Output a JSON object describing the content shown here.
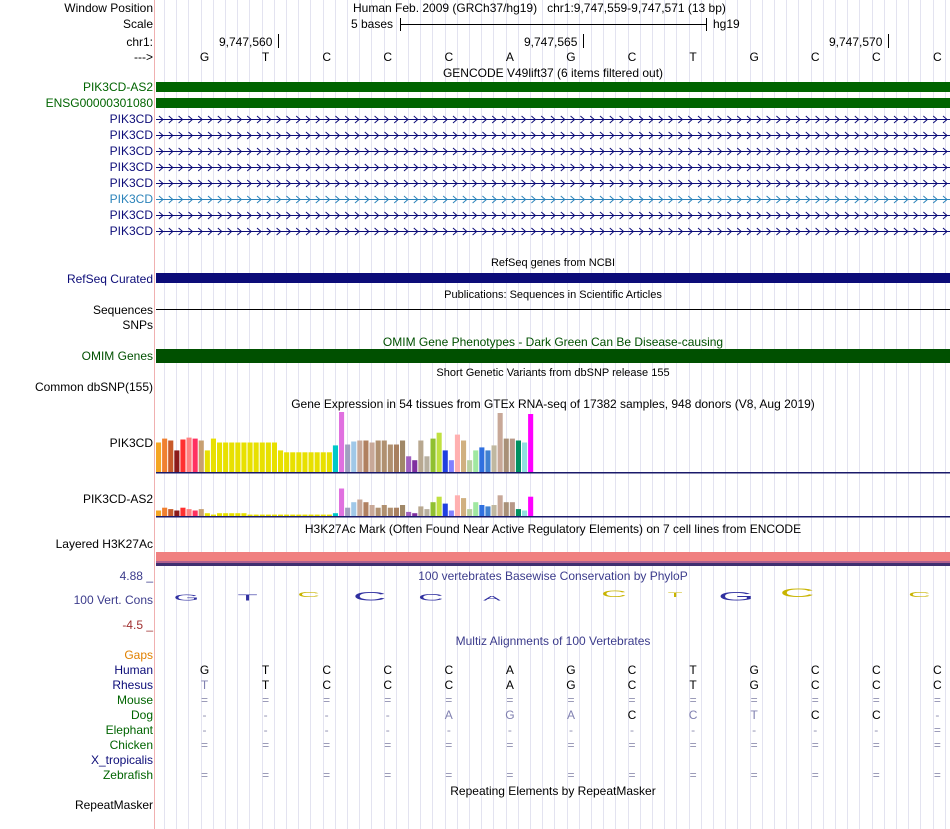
{
  "labels": {
    "window_position": "Window Position",
    "scale": "Scale",
    "chr": "chr1:",
    "arrow": "--->",
    "pik3cd_as2": "PIK3CD-AS2",
    "ensg": "ENSG00000301080",
    "pik3cd": "PIK3CD",
    "refseq": "RefSeq Curated",
    "sequences": "Sequences",
    "snps": "SNPs",
    "omim": "OMIM Genes",
    "common_dbsnp": "Common dbSNP(155)",
    "gtex_pik3cd": "PIK3CD",
    "gtex_pik3cd_as2": "PIK3CD-AS2",
    "layered": "Layered H3K27Ac",
    "cons": "100 Vert. Cons",
    "cons_max": "4.88 _",
    "cons_min": "-4.5 _",
    "repeatmasker": "RepeatMasker"
  },
  "header": {
    "position": "Human Feb. 2009 (GRCh37/hg19)   chr1:9,747,559-9,747,571 (13 bp)",
    "scale_text": "5 bases",
    "assembly": "hg19",
    "ticks": [
      "9,747,560",
      "9,747,565",
      "9,747,570"
    ]
  },
  "bases": [
    "G",
    "T",
    "C",
    "C",
    "C",
    "A",
    "G",
    "C",
    "T",
    "G",
    "C",
    "C",
    "C"
  ],
  "track_titles": {
    "gencode": "GENCODE V49lift37 (6 items filtered out)",
    "refseq": "RefSeq genes from NCBI",
    "publications": "Publications: Sequences in Scientific Articles",
    "omim": "OMIM Gene Phenotypes - Dark Green Can Be Disease-causing",
    "dbsnp": "Short Genetic Variants from dbSNP release 155",
    "gtex": "Gene Expression in 54 tissues from GTEx RNA-seq of 17382 samples, 948 donors (V8, Aug 2019)",
    "h3k27ac": "H3K27Ac Mark (Often Found Near Active Regulatory Elements) on 7 cell lines from ENCODE",
    "phylop": "100 vertebrates Basewise Conservation by PhyloP",
    "multiz": "Multiz Alignments of 100 Vertebrates",
    "repeat": "Repeating Elements by RepeatMasker"
  },
  "gencode_transcripts": [
    "PIK3CD",
    "PIK3CD",
    "PIK3CD",
    "PIK3CD",
    "PIK3CD",
    "PIK3CD",
    "PIK3CD",
    "PIK3CD"
  ],
  "multiz": {
    "gaps_label": "Gaps",
    "species": [
      {
        "name": "Human",
        "bases": [
          "G",
          "T",
          "C",
          "C",
          "C",
          "A",
          "G",
          "C",
          "T",
          "G",
          "C",
          "C",
          "C"
        ]
      },
      {
        "name": "Rhesus",
        "bases": [
          "T",
          "T",
          "C",
          "C",
          "C",
          "A",
          "G",
          "C",
          "T",
          "G",
          "C",
          "C",
          "C"
        ]
      },
      {
        "name": "Mouse",
        "bases": [
          "=",
          "=",
          "=",
          "=",
          "=",
          "=",
          "=",
          "=",
          "=",
          "=",
          "=",
          "=",
          "="
        ]
      },
      {
        "name": "Dog",
        "bases": [
          "-",
          "-",
          "-",
          "-",
          "A",
          "G",
          "A",
          "C",
          "C",
          "T",
          "C",
          "C",
          "-"
        ]
      },
      {
        "name": "Elephant",
        "bases": [
          "-",
          "-",
          "-",
          "-",
          "-",
          "-",
          "-",
          "-",
          "-",
          "-",
          "-",
          "-",
          "="
        ]
      },
      {
        "name": "Chicken",
        "bases": [
          "=",
          "=",
          "=",
          "=",
          "=",
          "=",
          "=",
          "=",
          "=",
          "=",
          "=",
          "=",
          "="
        ]
      },
      {
        "name": "X_tropicalis",
        "bases": [
          "",
          "",
          "",
          "",
          "",
          "",
          "",
          "",
          "",
          "",
          "",
          "",
          ""
        ]
      },
      {
        "name": "Zebrafish",
        "bases": [
          "=",
          "=",
          "=",
          "=",
          "=",
          "=",
          "=",
          "=",
          "=",
          "=",
          "=",
          "=",
          "="
        ]
      }
    ]
  },
  "gtex_pik3cd_values": [
    30,
    34,
    32,
    22,
    33,
    35,
    34,
    32,
    22,
    34,
    30,
    30,
    30,
    30,
    30,
    30,
    30,
    30,
    30,
    30,
    22,
    20,
    20,
    20,
    20,
    20,
    20,
    20,
    20,
    27,
    61,
    28,
    31,
    32,
    32,
    30,
    32,
    32,
    28,
    28,
    32,
    16,
    12,
    32,
    16,
    34,
    40,
    22,
    12,
    38,
    32,
    12,
    22,
    25,
    22,
    27,
    60,
    34,
    34,
    32,
    30,
    59
  ],
  "gtex_pik3cd_colors": [
    "#f5a623",
    "#f08030",
    "#c85a2a",
    "#8b1a1a",
    "#ff3030",
    "#ff8080",
    "#ff3060",
    "#c8a070",
    "#e8e000",
    "#e8e000",
    "#e8e000",
    "#e8e000",
    "#e8e000",
    "#e8e000",
    "#e8e000",
    "#e8e000",
    "#e8e000",
    "#e8e000",
    "#e8e000",
    "#e8e000",
    "#e8e000",
    "#e8e000",
    "#e8e000",
    "#e8e000",
    "#e8e000",
    "#e8e000",
    "#e8e000",
    "#e8e000",
    "#e8e000",
    "#00c8c8",
    "#e070e0",
    "#a0a0c0",
    "#a0c8e8",
    "#c8a898",
    "#b08060",
    "#c8a898",
    "#b09070",
    "#b09070",
    "#b09070",
    "#a88060",
    "#a08868",
    "#a060c0",
    "#8030a0",
    "#b8a890",
    "#b8b0a0",
    "#90c030",
    "#c0e040",
    "#2040e0",
    "#8080ff",
    "#ffb0b0",
    "#d0b080",
    "#b8d0a0",
    "#a0e8a0",
    "#3070e0",
    "#4080d0",
    "#c0b8a0",
    "#c8a898",
    "#a89078",
    "#b89888",
    "#009060",
    "#90e0e0",
    "#ff00ff"
  ],
  "gtex_as2_values": [
    8,
    12,
    10,
    8,
    12,
    10,
    8,
    10,
    4,
    2,
    4,
    4,
    4,
    4,
    4,
    2,
    2,
    2,
    2,
    2,
    2,
    2,
    2,
    2,
    2,
    2,
    2,
    2,
    2,
    4,
    40,
    12,
    20,
    24,
    20,
    16,
    12,
    16,
    12,
    12,
    16,
    6,
    4,
    14,
    10,
    20,
    28,
    18,
    8,
    30,
    26,
    10,
    20,
    16,
    14,
    16,
    30,
    20,
    20,
    10,
    8,
    28
  ],
  "phylop_color_pos": "#c8b400",
  "phylop_color_neg": "#3030a0",
  "colors": {
    "gencode_coding": "#006400",
    "gencode_dark": "#0c0c78",
    "gencode_light": "#2b83ba",
    "refseq": "#0c0c78",
    "omim": "#005000",
    "cons_label": "#3c3c8c",
    "gaps": "#e08000",
    "species_green": "#006400"
  }
}
